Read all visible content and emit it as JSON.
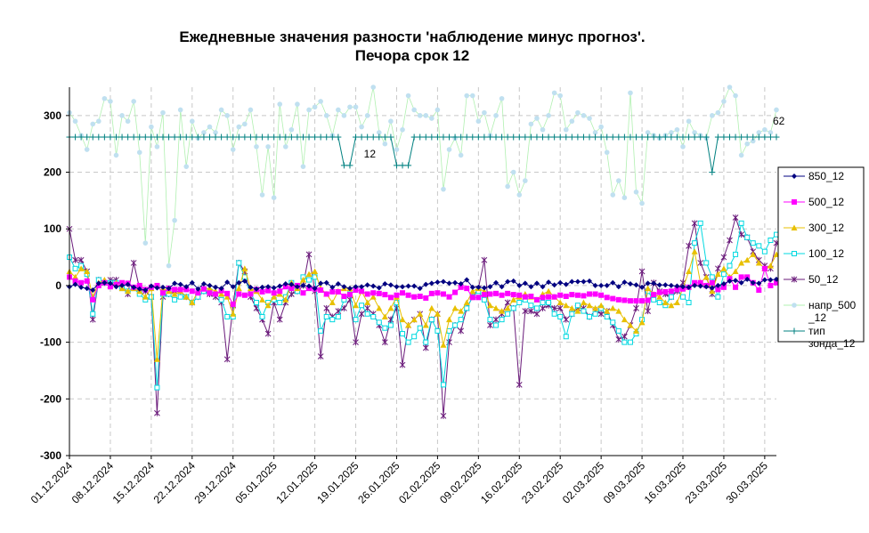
{
  "chart_data": {
    "type": "line",
    "title_lines": [
      "Ежедневные значения разности 'наблюдение минус прогноз'.",
      "Печора    срок 12"
    ],
    "x_tick_labels": [
      "01.12.2024",
      "08.12.2024",
      "15.12.2024",
      "22.12.2024",
      "29.12.2024",
      "05.01.2025",
      "12.01.2025",
      "19.01.2025",
      "26.01.2025",
      "02.02.2025",
      "09.02.2025",
      "16.02.2025",
      "23.02.2025",
      "02.03.2025",
      "09.03.2025",
      "16.03.2025",
      "23.03.2025",
      "30.03.2025"
    ],
    "ylim": [
      -300,
      350
    ],
    "y_ticks": [
      -300,
      -200,
      -100,
      0,
      100,
      200,
      300
    ],
    "y_tick_labels": [
      "-300",
      "-200",
      "-100",
      "0",
      "100",
      "200",
      "300"
    ],
    "grid": true,
    "legend_position": "right",
    "annotations": [
      {
        "text": "12",
        "day": 51,
        "y": 232
      },
      {
        "text": "62",
        "day": 121,
        "y": 290
      }
    ],
    "colors": {
      "s850": "#000080",
      "s500": "#ff00ff",
      "s300": "#e8c000",
      "s100": "#00d8e0",
      "s50": "#6a1a7a",
      "snapr": "#c0e0f0",
      "snapr_line": "#b0f0b0",
      "stip": "#008080",
      "grid": "#c8c8c8"
    },
    "series": [
      {
        "name": "850_12",
        "key": "s850",
        "marker": "diamond",
        "values": [
          -2,
          2,
          -3,
          -5,
          -8,
          4,
          5,
          4,
          -2,
          0,
          2,
          -3,
          -6,
          -8,
          -1,
          -4,
          -3,
          -5,
          4,
          2,
          -2,
          5,
          -6,
          3,
          0,
          -3,
          -5,
          6,
          -2,
          5,
          8,
          -3,
          -6,
          -3,
          -2,
          -4,
          -1,
          3,
          2,
          -2,
          0,
          -1,
          -5,
          4,
          5,
          -3,
          3,
          -2,
          -5,
          -2,
          -2,
          1,
          -1,
          -4,
          3,
          1,
          -2,
          -2,
          -1,
          -1,
          -5,
          2,
          4,
          6,
          7,
          4,
          5,
          3,
          10,
          -3,
          -3,
          -4,
          -2,
          5,
          -2,
          7,
          8,
          0,
          4,
          -2,
          4,
          -2,
          6,
          1,
          5,
          2,
          7,
          7,
          7,
          8,
          0,
          0,
          0,
          5,
          -2,
          6,
          3,
          1,
          -3,
          4,
          4,
          1,
          1,
          0,
          -1,
          -2,
          -3,
          0,
          -1,
          -2,
          -4,
          0,
          3,
          8,
          9,
          5,
          11,
          5,
          4,
          10,
          10,
          11,
          10,
          13
        ]
      },
      {
        "name": "500_12",
        "key": "s500",
        "marker": "square",
        "values": [
          15,
          8,
          5,
          8,
          -25,
          0,
          5,
          -2,
          2,
          5,
          4,
          -3,
          0,
          -7,
          -3,
          0,
          -13,
          -5,
          -7,
          -7,
          -7,
          -10,
          -13,
          -6,
          -13,
          -15,
          -9,
          -14,
          -33,
          -15,
          -17,
          -15,
          -7,
          -11,
          -9,
          -13,
          -10,
          -2,
          -5,
          0,
          -13,
          -5,
          -6,
          -8,
          -15,
          -11,
          -11,
          -19,
          -16,
          -8,
          -10,
          -15,
          -13,
          -14,
          -16,
          -21,
          -17,
          -13,
          -17,
          -20,
          -19,
          -22,
          -14,
          -13,
          -15,
          -20,
          -12,
          -3,
          -5,
          -21,
          -21,
          -16,
          -15,
          -14,
          -17,
          -14,
          -16,
          -17,
          -20,
          -19,
          -25,
          -21,
          -20,
          -20,
          -17,
          -19,
          -16,
          -17,
          -18,
          -15,
          -15,
          -17,
          -21,
          -23,
          -25,
          -26,
          -27,
          -27,
          -27,
          -26,
          -16,
          -12,
          -11,
          -10,
          -7,
          -6,
          -3,
          5,
          5,
          0,
          5,
          -7,
          -3,
          12,
          -3,
          15,
          15,
          5,
          -8,
          30,
          0,
          5,
          5,
          15,
          0
        ]
      },
      {
        "name": "300_12",
        "key": "s300",
        "marker": "triangle",
        "values": [
          25,
          15,
          30,
          25,
          -20,
          5,
          10,
          0,
          5,
          -5,
          -10,
          -5,
          -10,
          -20,
          -5,
          -130,
          -5,
          -10,
          -15,
          -10,
          -20,
          -30,
          -10,
          -5,
          -5,
          -10,
          -15,
          -20,
          -50,
          -5,
          30,
          -5,
          -10,
          -25,
          -35,
          -20,
          -15,
          -25,
          5,
          -5,
          10,
          20,
          25,
          -5,
          -15,
          -30,
          -10,
          -5,
          -5,
          -35,
          -10,
          -30,
          -20,
          -40,
          -55,
          -40,
          -20,
          -60,
          -70,
          -60,
          -50,
          -70,
          -40,
          -50,
          -105,
          -60,
          -40,
          -45,
          -30,
          -10,
          -5,
          -10,
          -35,
          -40,
          -45,
          -40,
          -25,
          -20,
          -15,
          -20,
          -25,
          -15,
          -10,
          -20,
          -30,
          -35,
          -40,
          -45,
          -30,
          -35,
          -40,
          -35,
          -45,
          -40,
          -45,
          -60,
          -70,
          -80,
          -65,
          -5,
          -15,
          -20,
          -30,
          -35,
          -30,
          -5,
          25,
          60,
          5,
          15,
          -10,
          20,
          30,
          15,
          25,
          40,
          45,
          55,
          40,
          30,
          35,
          55,
          60,
          45,
          35
        ]
      },
      {
        "name": "100_12",
        "key": "s100",
        "marker": "hollowsquare",
        "values": [
          50,
          30,
          35,
          20,
          -50,
          10,
          5,
          5,
          5,
          -5,
          -10,
          -5,
          -15,
          -25,
          -20,
          -180,
          -15,
          -15,
          -25,
          -20,
          -20,
          -30,
          -20,
          -10,
          -10,
          -15,
          -25,
          -55,
          -55,
          40,
          15,
          -15,
          -30,
          -55,
          -30,
          -25,
          -30,
          -20,
          5,
          -10,
          15,
          10,
          15,
          -80,
          -55,
          -60,
          -55,
          -25,
          -15,
          -60,
          -35,
          -50,
          -55,
          -65,
          -75,
          -70,
          -30,
          -85,
          -100,
          -90,
          -75,
          -100,
          -60,
          -80,
          -175,
          -80,
          -70,
          -60,
          -40,
          -20,
          -10,
          -25,
          -60,
          -70,
          -60,
          -50,
          -40,
          -30,
          -25,
          -35,
          -40,
          -30,
          -30,
          -50,
          -55,
          -90,
          -50,
          -35,
          -45,
          -55,
          -50,
          -40,
          -55,
          -65,
          -80,
          -100,
          -100,
          -85,
          -60,
          -10,
          -25,
          -30,
          -35,
          -20,
          -5,
          -20,
          -30,
          75,
          110,
          40,
          15,
          -20,
          20,
          35,
          55,
          110,
          85,
          75,
          70,
          60,
          80,
          90,
          70,
          60
        ]
      },
      {
        "name": "50_12",
        "key": "s50",
        "marker": "star",
        "values": [
          100,
          45,
          45,
          25,
          -60,
          10,
          5,
          10,
          10,
          0,
          -15,
          40,
          -5,
          -10,
          -20,
          -225,
          -20,
          -15,
          -10,
          -10,
          -20,
          -30,
          -20,
          -10,
          -15,
          -20,
          -30,
          -130,
          -35,
          40,
          25,
          -20,
          -40,
          -60,
          -85,
          -30,
          -60,
          -30,
          -15,
          -10,
          0,
          55,
          -10,
          -125,
          -40,
          -55,
          -45,
          -40,
          -25,
          -100,
          -50,
          -40,
          -50,
          -70,
          -100,
          -60,
          -40,
          -140,
          -70,
          -60,
          -50,
          -110,
          -60,
          -50,
          -230,
          -100,
          -70,
          -80,
          -40,
          -20,
          -5,
          45,
          -70,
          -60,
          -50,
          -30,
          -40,
          -175,
          -45,
          -45,
          -50,
          -40,
          -35,
          -40,
          -40,
          -60,
          -50,
          -40,
          -40,
          -55,
          -45,
          -50,
          -45,
          -70,
          -95,
          -90,
          -70,
          -40,
          25,
          -45,
          5,
          -10,
          -15,
          -20,
          -10,
          5,
          70,
          110,
          40,
          15,
          -15,
          30,
          50,
          80,
          120,
          90,
          85,
          60,
          45,
          35,
          30,
          75,
          70
        ]
      },
      {
        "name": "напр_500\n_12",
        "key": "snapr",
        "marker": "circle",
        "values": [
          305,
          290,
          265,
          240,
          285,
          290,
          330,
          325,
          230,
          300,
          290,
          325,
          235,
          75,
          280,
          245,
          305,
          35,
          115,
          310,
          210,
          290,
          260,
          270,
          280,
          270,
          310,
          300,
          240,
          280,
          285,
          310,
          245,
          160,
          245,
          155,
          320,
          245,
          275,
          320,
          210,
          310,
          315,
          325,
          300,
          265,
          310,
          300,
          315,
          315,
          280,
          300,
          350,
          270,
          250,
          290,
          240,
          275,
          335,
          310,
          300,
          300,
          295,
          310,
          170,
          240,
          260,
          230,
          335,
          335,
          290,
          305,
          265,
          300,
          330,
          175,
          200,
          160,
          185,
          285,
          295,
          275,
          300,
          340,
          335,
          275,
          290,
          305,
          300,
          295,
          270,
          280,
          235,
          160,
          185,
          155,
          340,
          165,
          145,
          270,
          265,
          260,
          265,
          270,
          275,
          245,
          290,
          270,
          265,
          260,
          300,
          305,
          325,
          350,
          335,
          230,
          250,
          255,
          270,
          275,
          270,
          310
        ]
      },
      {
        "name": "тип\nзонда_12",
        "key": "stip",
        "marker": "plus",
        "values": [
          262,
          262,
          262,
          262,
          262,
          262,
          262,
          262,
          262,
          262,
          262,
          262,
          262,
          262,
          262,
          262,
          262,
          262,
          262,
          262,
          262,
          262,
          262,
          262,
          262,
          262,
          262,
          262,
          262,
          262,
          262,
          262,
          262,
          262,
          262,
          262,
          262,
          262,
          262,
          262,
          262,
          262,
          262,
          262,
          262,
          262,
          262,
          212,
          212,
          262,
          262,
          262,
          262,
          262,
          262,
          262,
          212,
          212,
          212,
          262,
          262,
          262,
          262,
          262,
          262,
          262,
          262,
          262,
          262,
          262,
          262,
          262,
          262,
          262,
          262,
          262,
          262,
          262,
          262,
          262,
          262,
          262,
          262,
          262,
          262,
          262,
          262,
          262,
          262,
          262,
          262,
          262,
          262,
          262,
          262,
          262,
          262,
          262,
          262,
          262,
          262,
          262,
          262,
          262,
          262,
          262,
          262,
          262,
          262,
          262,
          200,
          262,
          262,
          262,
          262,
          262,
          262,
          262,
          262,
          262,
          262,
          262
        ]
      }
    ]
  }
}
